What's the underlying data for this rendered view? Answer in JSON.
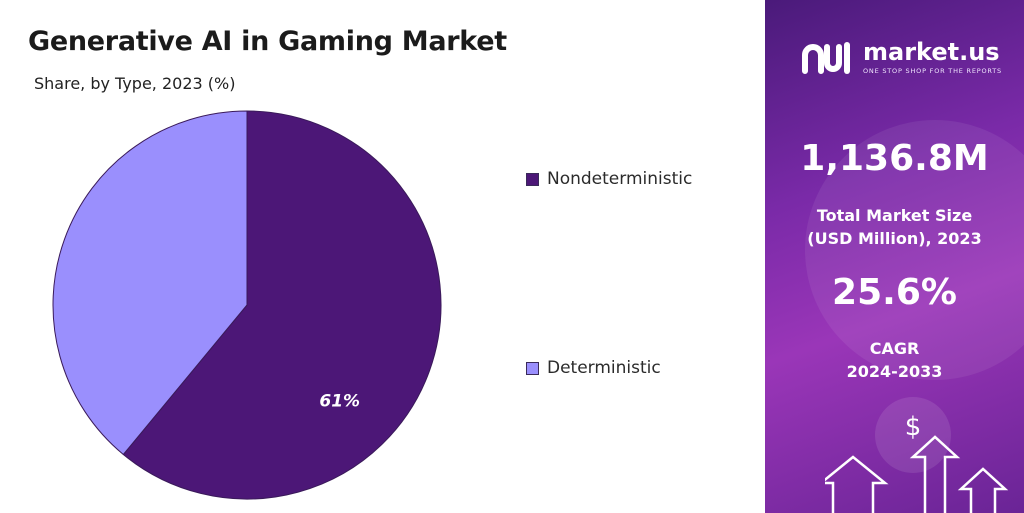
{
  "title": "Generative AI in Gaming Market",
  "subtitle": "Share, by Type, 2023 (%)",
  "chart_data": {
    "type": "pie",
    "categories": [
      "Nondeterministic",
      "Deterministic"
    ],
    "values": [
      61,
      39
    ],
    "data_labels": [
      "61%",
      ""
    ],
    "legend_placement": "right"
  },
  "legend": [
    {
      "label": "Nondeterministic",
      "color": "#4c1777"
    },
    {
      "label": "Deterministic",
      "color": "#9a8ffd"
    }
  ],
  "colors": {
    "nondeterministic": "#4c1777",
    "deterministic": "#9a8ffd",
    "panel": "#7a2aa8"
  },
  "sidebar": {
    "brand_name": "market.us",
    "brand_tagline": "ONE STOP SHOP FOR THE REPORTS",
    "market_size_value": "1,136.8M",
    "market_size_label_line1": "Total Market Size",
    "market_size_label_line2": "(USD Million), 2023",
    "cagr_value": "25.6%",
    "cagr_label_line1": "CAGR",
    "cagr_label_line2": "2024-2033",
    "icons": [
      "market-us-logo-icon",
      "dollar-icon",
      "up-arrow-icon"
    ]
  }
}
